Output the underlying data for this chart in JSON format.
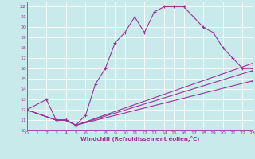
{
  "xlabel": "Windchill (Refroidissement éolien,°C)",
  "bg_color": "#c8eaea",
  "grid_color": "#ffffff",
  "line_color": "#993399",
  "xlim": [
    0,
    23
  ],
  "ylim": [
    10,
    22.5
  ],
  "yticks": [
    10,
    11,
    12,
    13,
    14,
    15,
    16,
    17,
    18,
    19,
    20,
    21,
    22
  ],
  "xticks": [
    0,
    1,
    2,
    3,
    4,
    5,
    6,
    7,
    8,
    9,
    10,
    11,
    12,
    13,
    14,
    15,
    16,
    17,
    18,
    19,
    20,
    21,
    22,
    23
  ],
  "line1_x": [
    0,
    2,
    3,
    4,
    5,
    6,
    7,
    8,
    9,
    10,
    11,
    12,
    13,
    14,
    15,
    16,
    17,
    18,
    19,
    20,
    21,
    22,
    23
  ],
  "line1_y": [
    12,
    13,
    11,
    11,
    10.5,
    11.5,
    14.5,
    16,
    18.5,
    19.5,
    21,
    19.5,
    21.5,
    22,
    22,
    22,
    21,
    20,
    19.5,
    18,
    17,
    16,
    16
  ],
  "line2_x": [
    0,
    3,
    4,
    5,
    23
  ],
  "line2_y": [
    12,
    11,
    11,
    10.5,
    16.5
  ],
  "line3_x": [
    0,
    3,
    4,
    5,
    23
  ],
  "line3_y": [
    12,
    11,
    11,
    10.5,
    15.8
  ],
  "line4_x": [
    0,
    3,
    4,
    5,
    23
  ],
  "line4_y": [
    12,
    11,
    11,
    10.5,
    14.8
  ]
}
